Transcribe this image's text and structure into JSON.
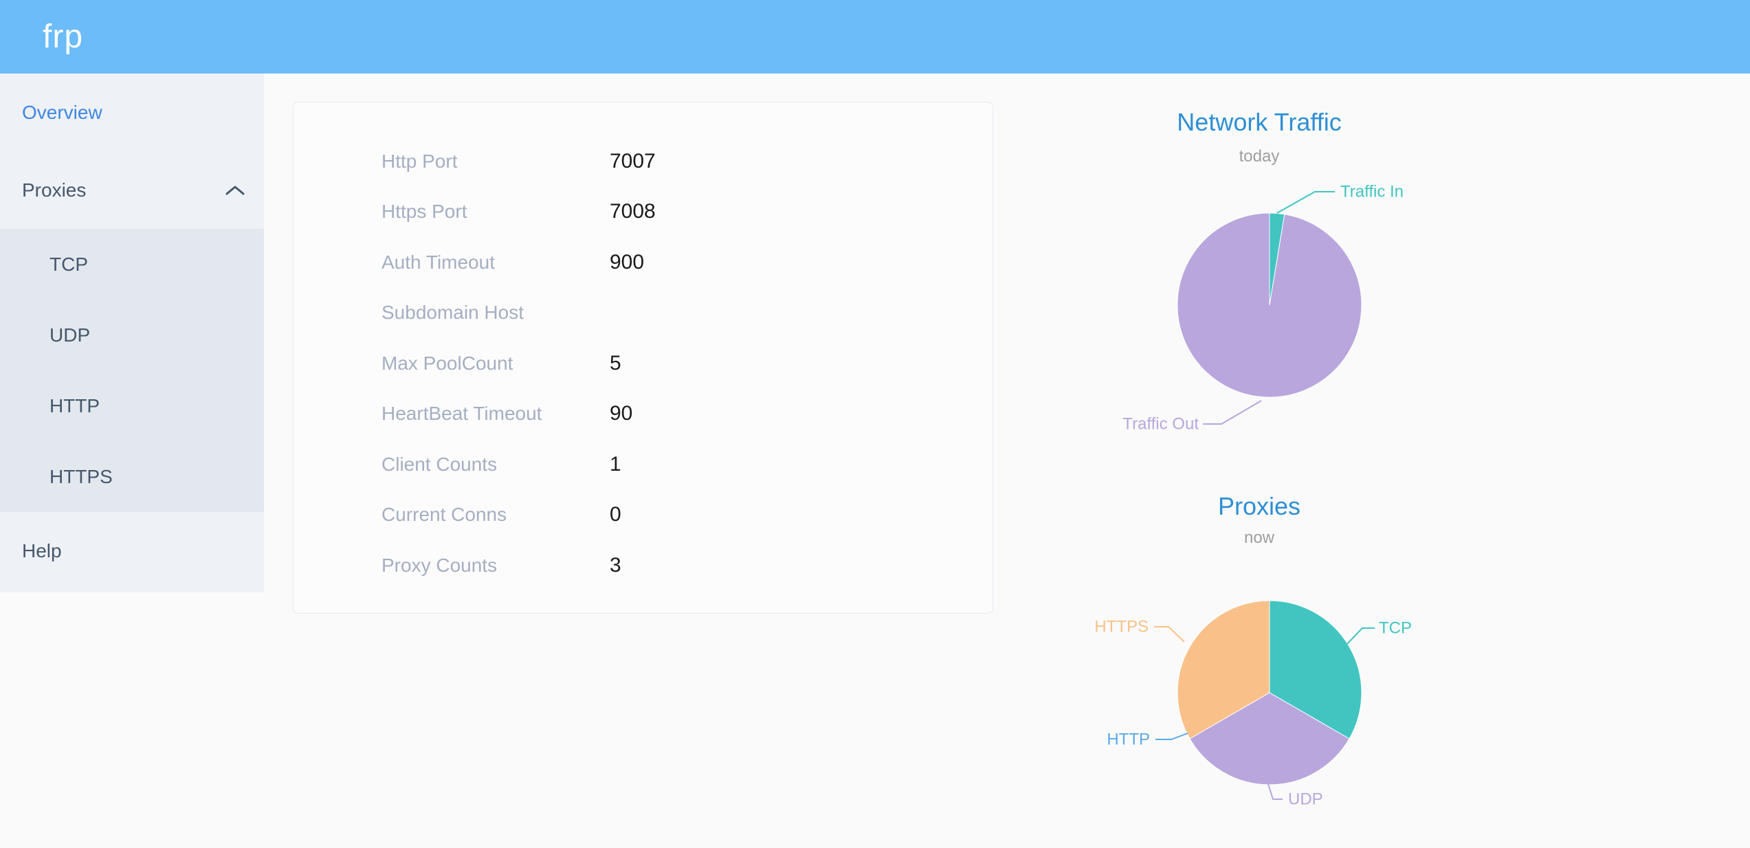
{
  "header": {
    "logo": "frp"
  },
  "sidebar": {
    "overview": "Overview",
    "proxies": "Proxies",
    "proxies_children": [
      "TCP",
      "UDP",
      "HTTP",
      "HTTPS"
    ],
    "help": "Help"
  },
  "server_info": {
    "rows": [
      {
        "label": "Http Port",
        "value": "7007"
      },
      {
        "label": "Https Port",
        "value": "7008"
      },
      {
        "label": "Auth Timeout",
        "value": "900"
      },
      {
        "label": "Subdomain Host",
        "value": ""
      },
      {
        "label": "Max PoolCount",
        "value": "5"
      },
      {
        "label": "HeartBeat Timeout",
        "value": "90"
      },
      {
        "label": "Client Counts",
        "value": "1"
      },
      {
        "label": "Current Conns",
        "value": "0"
      },
      {
        "label": "Proxy Counts",
        "value": "3"
      }
    ]
  },
  "chart_data": [
    {
      "type": "pie",
      "title": "Network Traffic",
      "subtitle": "today",
      "legend_position": "callout-labels",
      "slices": [
        {
          "label": "Traffic In",
          "value": 2.6,
          "color": "#42c5c1"
        },
        {
          "label": "Traffic Out",
          "value": 97.4,
          "color": "#b8a6dd"
        }
      ]
    },
    {
      "type": "pie",
      "title": "Proxies",
      "subtitle": "now",
      "legend_position": "callout-labels",
      "slices": [
        {
          "label": "TCP",
          "value": 1,
          "color": "#42c5c1"
        },
        {
          "label": "UDP",
          "value": 1,
          "color": "#b8a6dd"
        },
        {
          "label": "HTTP",
          "value": 0,
          "color": "#5aa9e8"
        },
        {
          "label": "HTTPS",
          "value": 1,
          "color": "#f9c189"
        }
      ]
    }
  ],
  "colors": {
    "header_bg": "#6bbcf9",
    "brand_text": "#ffffff",
    "sidebar_bg": "#eef1f6",
    "submenu_bg": "#e3e8ef",
    "menu_text": "#45576c",
    "menu_active_text": "#3e87e0",
    "page_bg": "#fafafa",
    "card_border": "#e6e9f2",
    "info_label_text": "#a5aec1",
    "info_value_text": "#1a1a1a",
    "chart_title_text": "#2e8fd4",
    "chart_subtitle_text": "#9e9e9e"
  }
}
